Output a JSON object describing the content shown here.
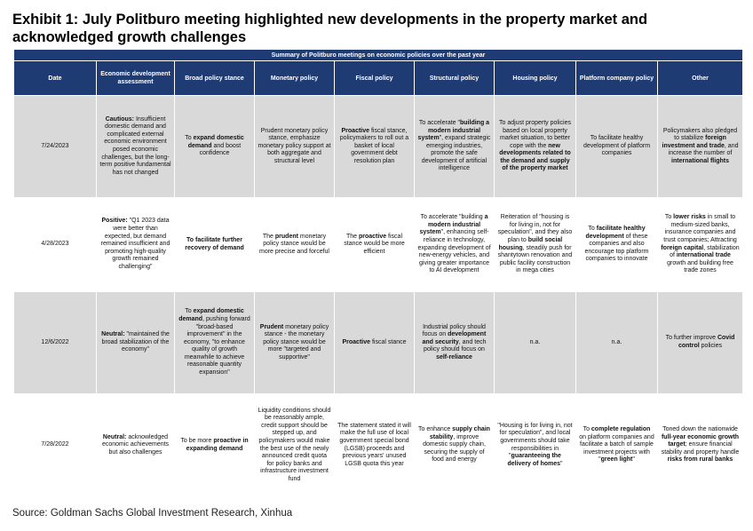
{
  "title": "Exhibit 1: July Politburo meeting highlighted new developments in the property market and acknowledged growth challenges",
  "table": {
    "banner": "Summary of Politburo meetings on economic policies over the past year",
    "columns": [
      "Date",
      "Economic development assessment",
      "Broad policy stance",
      "Monetary policy",
      "Fiscal policy",
      "Structural policy",
      "Housing policy",
      "Platform company policy",
      "Other"
    ],
    "rows": [
      {
        "date": "7/24/2023",
        "assessment": [
          {
            "b": "Cautious:"
          },
          {
            "t": " Insufficient domestic demand and complicated external economic environment posed economic challenges, but the long-term positive fundamental has not changed"
          }
        ],
        "stance": [
          {
            "t": "To "
          },
          {
            "b": "expand domestic demand"
          },
          {
            "t": " and boost confidence"
          }
        ],
        "monetary": [
          {
            "t": "Prudent monetary policy stance, emphasize monetary policy support at both aggregate and structural level"
          }
        ],
        "fiscal": [
          {
            "b": "Proactive"
          },
          {
            "t": " fiscal stance, policymakers to roll out a basket of local government debt resolution plan"
          }
        ],
        "structural": [
          {
            "t": "To accelerate \""
          },
          {
            "b": "building a modern industrial system"
          },
          {
            "t": "\", expand strategic emerging industries, promote the safe development of artificial intelligence"
          }
        ],
        "housing": [
          {
            "t": "To adjust property policies based on local property market situation, to better cope with the "
          },
          {
            "b": "new developments related to the demand and supply of the property market"
          }
        ],
        "platform": [
          {
            "t": "To facilitate healthy development of platform companies"
          }
        ],
        "other": [
          {
            "t": "Policymakers also pledged to stabilize "
          },
          {
            "b": "foreign investment and trade"
          },
          {
            "t": ", and increase the number of "
          },
          {
            "b": "international flights"
          }
        ]
      },
      {
        "date": "4/28/2023",
        "assessment": [
          {
            "b": "Positive:"
          },
          {
            "t": " \"Q1 2023 data were better than expected, but demand remained insufficient and promoting high-quality growth remained challenging\""
          }
        ],
        "stance": [
          {
            "b": "To facilitate further recovery of demand"
          }
        ],
        "monetary": [
          {
            "t": "The "
          },
          {
            "b": "prudent"
          },
          {
            "t": " monetary policy stance would be more precise and forceful"
          }
        ],
        "fiscal": [
          {
            "t": "The "
          },
          {
            "b": "proactive"
          },
          {
            "t": " fiscal stance would be more efficient"
          }
        ],
        "structural": [
          {
            "t": "To accelerate \"building "
          },
          {
            "b": "a modern industrial system"
          },
          {
            "t": "\", enhancing self-reliance in technology, expanding development of new-energy vehicles, and giving greater importance to AI development"
          }
        ],
        "housing": [
          {
            "t": "Reiteration of \"housing is for living in, not for speculation\", and they also plan to "
          },
          {
            "b": "build social housing"
          },
          {
            "t": ", steadily push for shantytown renovation and public facility construction in mega cities"
          }
        ],
        "platform": [
          {
            "t": "To "
          },
          {
            "b": "facilitate healthy development"
          },
          {
            "t": " of these companies and also encourage top platform companies to innovate"
          }
        ],
        "other": [
          {
            "t": "To "
          },
          {
            "b": "lower risks"
          },
          {
            "t": " in small to medium-sized banks, insurance companies and trust companies; Attracting "
          },
          {
            "b": "foreign capital"
          },
          {
            "t": ", stabilization of "
          },
          {
            "b": "international trade"
          },
          {
            "t": " growth and building free trade zones"
          }
        ]
      },
      {
        "date": "12/6/2022",
        "assessment": [
          {
            "b": "Neutral:"
          },
          {
            "t": " \"maintained the broad stabilization of the economy\""
          }
        ],
        "stance": [
          {
            "t": "To "
          },
          {
            "b": "expand domestic demand"
          },
          {
            "t": ", pushing forward \"broad-based improvement\" in the economy, \"to enhance quality of growth meanwhile to achieve reasonable quantity expansion\""
          }
        ],
        "monetary": [
          {
            "b": "Prudent"
          },
          {
            "t": " monetary policy stance - the monetary policy stance would be more \"targeted and supportive\""
          }
        ],
        "fiscal": [
          {
            "b": "Proactive"
          },
          {
            "t": " fiscal stance"
          }
        ],
        "structural": [
          {
            "t": "Industrial policy should focus on "
          },
          {
            "b": "development and security"
          },
          {
            "t": ", and tech policy should focus on "
          },
          {
            "b": "self-reliance"
          }
        ],
        "housing": [
          {
            "t": "n.a."
          }
        ],
        "platform": [
          {
            "t": "n.a."
          }
        ],
        "other": [
          {
            "t": "To further improve "
          },
          {
            "b": "Covid control"
          },
          {
            "t": " policies"
          }
        ]
      },
      {
        "date": "7/28/2022",
        "assessment": [
          {
            "b": "Neutral:"
          },
          {
            "t": " acknowledged economic achievements but also challenges"
          }
        ],
        "stance": [
          {
            "t": "To be more "
          },
          {
            "b": "proactive in expanding demand"
          }
        ],
        "monetary": [
          {
            "t": "Liquidity conditions should be reasonably ample, credit support should be stepped up, and policymakers would make the best use of the newly announced credit quota for policy banks and infrastructure investment fund"
          }
        ],
        "fiscal": [
          {
            "t": "The statement stated it will make the full use of local government special bond (LGSB) proceeds and previous years' unused LGSB quota this year"
          }
        ],
        "structural": [
          {
            "t": "To enhance "
          },
          {
            "b": "supply chain stability"
          },
          {
            "t": ", improve domestic supply chain, securing the supply of food and energy"
          }
        ],
        "housing": [
          {
            "t": "\"Housing is for living in, not for speculation\", and local governments should take responsibilities in \""
          },
          {
            "b": "guaranteeing the delivery of homes"
          },
          {
            "t": "\""
          }
        ],
        "platform": [
          {
            "t": "To "
          },
          {
            "b": "complete regulation"
          },
          {
            "t": " on platform companies and facilitate a batch of sample investment projects with \""
          },
          {
            "b": "green light"
          },
          {
            "t": "\""
          }
        ],
        "other": [
          {
            "t": "Toned down the nationwide "
          },
          {
            "b": "full-year economic growth target"
          },
          {
            "t": "; ensure financial stability and property handle "
          },
          {
            "b": "risks from rural banks"
          }
        ]
      }
    ]
  },
  "source": "Source: Goldman Sachs Global Investment Research, Xinhua",
  "colors": {
    "header_bg": "#1f3b73",
    "header_text": "#ffffff",
    "row_gray": "#d9d9d9",
    "row_white": "#ffffff"
  }
}
